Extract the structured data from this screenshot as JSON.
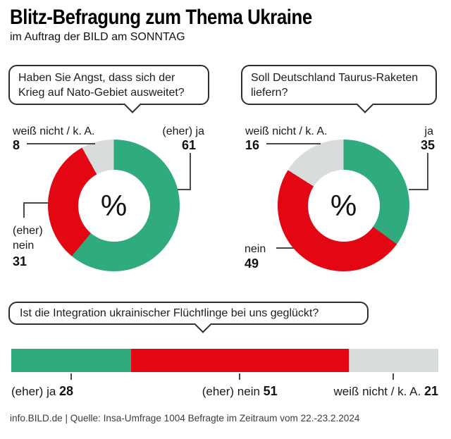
{
  "header": {
    "title": "Blitz-Befragung zum Thema Ukraine",
    "subtitle": "im Auftrag der BILD am SONNTAG"
  },
  "colors": {
    "yes_green": "#2fab7d",
    "no_red": "#e30613",
    "neutral_gray": "#d9dcdd",
    "line_gray": "#4a4a4a"
  },
  "chart_data": [
    {
      "type": "pie",
      "variant": "donut",
      "question": "Haben Sie Angst, dass sich der Krieg auf Nato-Gebiet ausweitet?",
      "center_label": "%",
      "unit": "percent",
      "start_angle_deg": 0,
      "direction": "clockwise",
      "slices": [
        {
          "label": "(eher) ja",
          "value": 61,
          "color": "#2fab7d"
        },
        {
          "label": "(eher) nein",
          "value": 31,
          "color": "#e30613"
        },
        {
          "label": "weiß nicht / k. A.",
          "value": 8,
          "color": "#d9dcdd"
        }
      ]
    },
    {
      "type": "pie",
      "variant": "donut",
      "question": "Soll Deutschland Taurus-Raketen liefern?",
      "center_label": "%",
      "unit": "percent",
      "start_angle_deg": 0,
      "direction": "clockwise",
      "slices": [
        {
          "label": "ja",
          "value": 35,
          "color": "#2fab7d"
        },
        {
          "label": "nein",
          "value": 49,
          "color": "#e30613"
        },
        {
          "label": "weiß nicht / k. A.",
          "value": 16,
          "color": "#d9dcdd"
        }
      ]
    },
    {
      "type": "bar",
      "variant": "stacked-horizontal",
      "question": "Ist die Integration ukrainischer Flüchtlinge bei uns geglückt?",
      "unit": "percent",
      "segments": [
        {
          "label": "(eher) ja",
          "value": 28,
          "color": "#2fab7d"
        },
        {
          "label": "(eher) nein",
          "value": 51,
          "color": "#e30613"
        },
        {
          "label": "weiß nicht / k. A.",
          "value": 21,
          "color": "#d9dcdd"
        }
      ]
    }
  ],
  "footer": {
    "text": "info.BILD.de | Quelle: Insa-Umfrage 1004 Befragte im Zeitraum vom 22.-23.2.2024"
  }
}
